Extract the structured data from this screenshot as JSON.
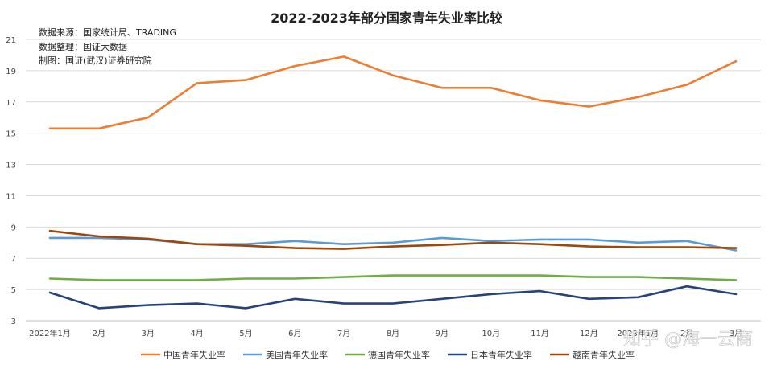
{
  "chart_data": {
    "type": "line",
    "title": "2022-2023年部分国家青年失业率比较",
    "notes": [
      "数据来源：国家统计局、TRADING",
      "数据整理：国证大数据",
      "制图：国证(武汉)证券研究院"
    ],
    "x": [
      "2022年1月",
      "2月",
      "3月",
      "4月",
      "5月",
      "6月",
      "7月",
      "8月",
      "9月",
      "10月",
      "11月",
      "12月",
      "2023年1月",
      "2月",
      "3月"
    ],
    "ylim": [
      3,
      21
    ],
    "yticks": [
      3,
      5,
      7,
      9,
      11,
      13,
      15,
      17,
      19,
      21
    ],
    "grid": true,
    "legend_position": "bottom",
    "series": [
      {
        "name": "中国青年失业率",
        "color": "#ED7D31",
        "values": [
          15.3,
          15.3,
          16.0,
          18.2,
          18.4,
          19.3,
          19.9,
          18.7,
          17.9,
          17.9,
          17.1,
          16.7,
          17.3,
          18.1,
          19.6
        ]
      },
      {
        "name": "美国青年失业率",
        "color": "#5B9BD5",
        "values": [
          8.3,
          8.3,
          8.2,
          7.9,
          7.9,
          8.1,
          7.9,
          8.0,
          8.3,
          8.1,
          8.2,
          8.2,
          8.0,
          8.1,
          7.5
        ]
      },
      {
        "name": "德国青年失业率",
        "color": "#70AD47",
        "values": [
          5.7,
          5.6,
          5.6,
          5.6,
          5.7,
          5.7,
          5.8,
          5.9,
          5.9,
          5.9,
          5.9,
          5.8,
          5.8,
          5.7,
          5.6
        ]
      },
      {
        "name": "日本青年失业率",
        "color": "#264478",
        "values": [
          4.8,
          3.8,
          4.0,
          4.1,
          3.8,
          4.4,
          4.1,
          4.1,
          4.4,
          4.7,
          4.9,
          4.4,
          4.5,
          5.2,
          4.7
        ]
      },
      {
        "name": "越南青年失业率",
        "color": "#9E480E",
        "values": [
          8.75,
          8.4,
          8.25,
          7.9,
          7.8,
          7.65,
          7.6,
          7.75,
          7.85,
          8.0,
          7.9,
          7.75,
          7.7,
          7.7,
          7.65
        ]
      }
    ]
  },
  "watermark": "知乎 @海一云商"
}
